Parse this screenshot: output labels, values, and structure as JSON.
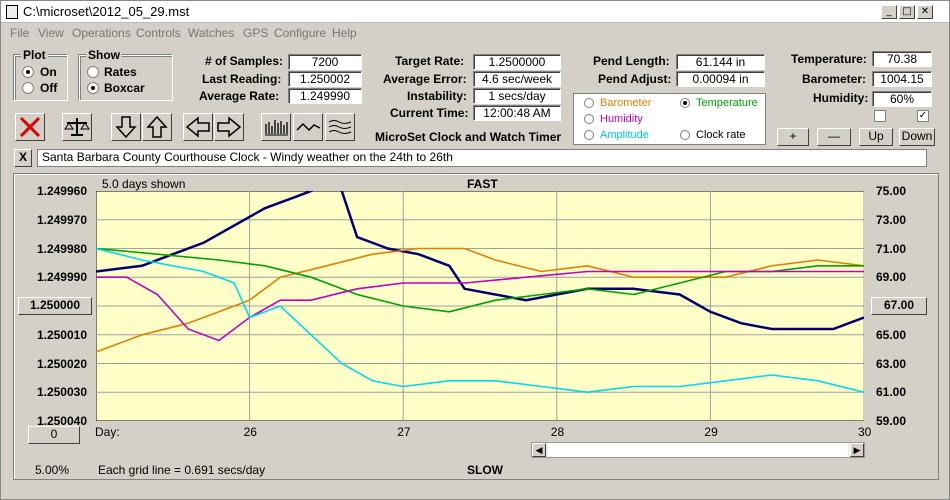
{
  "window": {
    "title": "C:\\microset\\2012_05_29.mst"
  },
  "menu": [
    "File",
    "View",
    "Operations",
    "Controls",
    "Watches",
    "GPS",
    "Configure",
    "Help"
  ],
  "plot": {
    "title": "Plot",
    "options": [
      "On",
      "Off"
    ],
    "selected": "On"
  },
  "show": {
    "title": "Show",
    "options": [
      "Rates",
      "Boxcar"
    ],
    "selected": "Boxcar"
  },
  "stats": {
    "samples_label": "# of Samples:",
    "samples": "7200",
    "last_label": "Last Reading:",
    "last": "1.250002",
    "avg_label": "Average Rate:",
    "avg": "1.249990",
    "target_label": "Target Rate:",
    "target": "1.2500000",
    "error_label": "Average Error:",
    "error": "4.6 sec/week",
    "instab_label": "Instability:",
    "instab": "1 secs/day",
    "time_label": "Current Time:",
    "time": "12:00:48 AM",
    "pend_len_label": "Pend Length:",
    "pend_len": "61.144 in",
    "pend_adj_label": "Pend Adjust:",
    "pend_adj": "0.00094 in",
    "temp_label": "Temperature:",
    "temp": "70.38",
    "baro_label": "Barometer:",
    "baro": "1004.15",
    "hum_label": "Humidity:",
    "hum": "60%"
  },
  "app_name": "MicroSet Clock and Watch Timer",
  "sensors": {
    "barometer": "Barometer",
    "temperature": "Temperature",
    "humidity": "Humidity",
    "amplitude": "Amplitude",
    "clock_rate": "Clock rate",
    "selected": "Temperature",
    "colors": {
      "barometer": "#e08000",
      "temperature": "#00a000",
      "humidity": "#c000c0",
      "amplitude": "#00c8e0",
      "clock_rate": "#000000"
    }
  },
  "adjust_buttons": {
    "plus": "+",
    "minus": "—",
    "up": "Up",
    "down": "Down"
  },
  "comment": "Santa Barbara County Courthouse Clock - Windy weather on the 24th to 26th",
  "comment_close": "X",
  "chart_header": {
    "days_shown": "5.0 days shown",
    "fast": "FAST",
    "slow": "SLOW",
    "grid_note": "Each grid line = 0.691 secs/day",
    "percent": "5.00%",
    "offset_button": "0",
    "center_button": "1.250000",
    "right_button": "67.00",
    "day_label": "Day:"
  },
  "chart_data": {
    "type": "line",
    "xlabel": "Day:",
    "x_ticks": [
      "26",
      "27",
      "28",
      "29",
      "30"
    ],
    "xlim": [
      25,
      30
    ],
    "y_left_ticks": [
      "1.249960",
      "1.249970",
      "1.249980",
      "1.249990",
      "1.250000",
      "1.250010",
      "1.250020",
      "1.250030",
      "1.250040"
    ],
    "ylim_left": [
      1.24996,
      1.25004
    ],
    "y_right_ticks": [
      "75.00",
      "73.00",
      "71.00",
      "69.00",
      "67.00",
      "65.00",
      "63.00",
      "61.00",
      "59.00"
    ],
    "ylim_right": [
      75,
      59
    ],
    "series": [
      {
        "name": "Clock rate",
        "color": "#000070",
        "values": [
          [
            25.0,
            1.249988
          ],
          [
            25.3,
            1.249986
          ],
          [
            25.5,
            1.249982
          ],
          [
            25.7,
            1.249978
          ],
          [
            25.9,
            1.249972
          ],
          [
            26.1,
            1.249966
          ],
          [
            26.3,
            1.249962
          ],
          [
            26.5,
            1.249958
          ],
          [
            26.6,
            1.24996
          ],
          [
            26.7,
            1.249976
          ],
          [
            26.9,
            1.24998
          ],
          [
            27.1,
            1.249982
          ],
          [
            27.3,
            1.249986
          ],
          [
            27.4,
            1.249994
          ],
          [
            27.6,
            1.249996
          ],
          [
            27.8,
            1.249998
          ],
          [
            28.0,
            1.249996
          ],
          [
            28.2,
            1.249994
          ],
          [
            28.5,
            1.249994
          ],
          [
            28.8,
            1.249996
          ],
          [
            29.0,
            1.250002
          ],
          [
            29.2,
            1.250006
          ],
          [
            29.4,
            1.250008
          ],
          [
            29.6,
            1.250008
          ],
          [
            29.8,
            1.250008
          ],
          [
            30.0,
            1.250004
          ]
        ]
      },
      {
        "name": "Barometer",
        "color": "#e08000",
        "values": [
          [
            25.0,
            1.250016
          ],
          [
            25.3,
            1.25001
          ],
          [
            25.6,
            1.250006
          ],
          [
            25.8,
            1.250002
          ],
          [
            26.0,
            1.249998
          ],
          [
            26.2,
            1.24999
          ],
          [
            26.5,
            1.249986
          ],
          [
            26.8,
            1.249982
          ],
          [
            27.1,
            1.24998
          ],
          [
            27.4,
            1.24998
          ],
          [
            27.6,
            1.249984
          ],
          [
            27.9,
            1.249988
          ],
          [
            28.2,
            1.249986
          ],
          [
            28.5,
            1.24999
          ],
          [
            28.8,
            1.24999
          ],
          [
            29.1,
            1.24999
          ],
          [
            29.4,
            1.249986
          ],
          [
            29.7,
            1.249984
          ],
          [
            30.0,
            1.249986
          ]
        ]
      },
      {
        "name": "Temperature",
        "color": "#00a000",
        "values": [
          [
            25.0,
            1.24998
          ],
          [
            25.4,
            1.249982
          ],
          [
            25.8,
            1.249984
          ],
          [
            26.1,
            1.249986
          ],
          [
            26.4,
            1.24999
          ],
          [
            26.7,
            1.249996
          ],
          [
            27.0,
            1.25
          ],
          [
            27.3,
            1.250002
          ],
          [
            27.6,
            1.249998
          ],
          [
            27.9,
            1.249996
          ],
          [
            28.2,
            1.249994
          ],
          [
            28.5,
            1.249996
          ],
          [
            28.8,
            1.249992
          ],
          [
            29.1,
            1.249988
          ],
          [
            29.4,
            1.249988
          ],
          [
            29.7,
            1.249986
          ],
          [
            30.0,
            1.249986
          ]
        ]
      },
      {
        "name": "Humidity",
        "color": "#c000c0",
        "values": [
          [
            25.0,
            1.24999
          ],
          [
            25.2,
            1.24999
          ],
          [
            25.4,
            1.249996
          ],
          [
            25.6,
            1.250008
          ],
          [
            25.8,
            1.250012
          ],
          [
            26.0,
            1.250004
          ],
          [
            26.2,
            1.249998
          ],
          [
            26.4,
            1.249998
          ],
          [
            26.7,
            1.249994
          ],
          [
            27.0,
            1.249992
          ],
          [
            27.4,
            1.249992
          ],
          [
            27.8,
            1.24999
          ],
          [
            28.2,
            1.249988
          ],
          [
            28.6,
            1.249988
          ],
          [
            29.0,
            1.249988
          ],
          [
            29.4,
            1.249988
          ],
          [
            29.7,
            1.249988
          ],
          [
            30.0,
            1.249988
          ]
        ]
      },
      {
        "name": "Amplitude",
        "color": "#00d8f0",
        "values": [
          [
            25.0,
            1.24998
          ],
          [
            25.3,
            1.249984
          ],
          [
            25.5,
            1.249986
          ],
          [
            25.7,
            1.249988
          ],
          [
            25.9,
            1.249992
          ],
          [
            26.0,
            1.250004
          ],
          [
            26.2,
            1.25
          ],
          [
            26.4,
            1.25001
          ],
          [
            26.6,
            1.25002
          ],
          [
            26.8,
            1.250026
          ],
          [
            27.0,
            1.250028
          ],
          [
            27.3,
            1.250026
          ],
          [
            27.6,
            1.250026
          ],
          [
            27.9,
            1.250028
          ],
          [
            28.2,
            1.25003
          ],
          [
            28.5,
            1.250028
          ],
          [
            28.8,
            1.250028
          ],
          [
            29.1,
            1.250026
          ],
          [
            29.4,
            1.250024
          ],
          [
            29.7,
            1.250026
          ],
          [
            30.0,
            1.25003
          ]
        ]
      }
    ],
    "grid": true,
    "background": "#ffffc8"
  }
}
